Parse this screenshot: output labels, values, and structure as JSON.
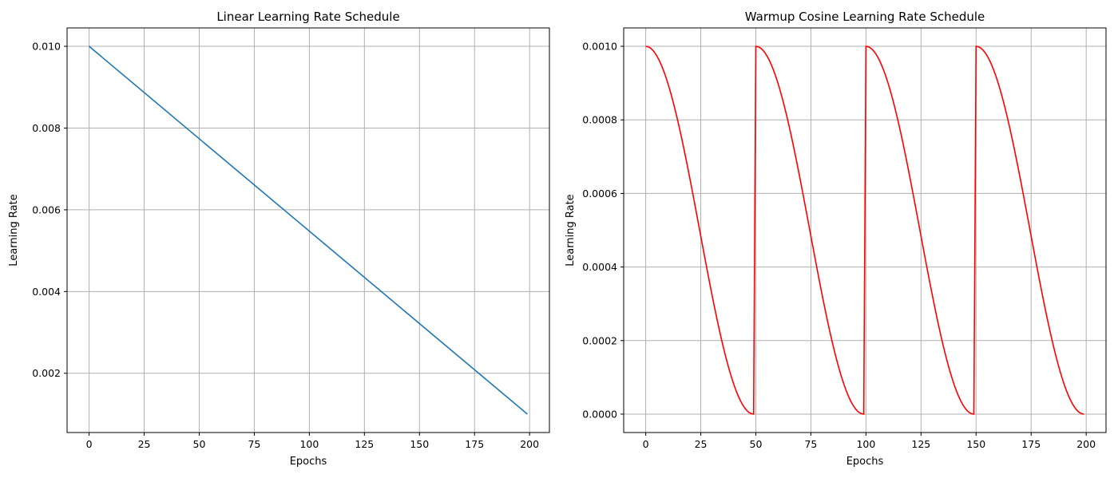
{
  "chart_data": [
    {
      "type": "line",
      "title": "Linear Learning Rate Schedule",
      "xlabel": "Epochs",
      "ylabel": "Learning Rate",
      "xlim": [
        -10,
        209
      ],
      "ylim": [
        0.00055,
        0.01045
      ],
      "xticks": [
        0,
        25,
        50,
        75,
        100,
        125,
        150,
        175,
        200
      ],
      "yticks": [
        0.002,
        0.004,
        0.006,
        0.008,
        0.01
      ],
      "xtick_labels": [
        "0",
        "25",
        "50",
        "75",
        "100",
        "125",
        "150",
        "175",
        "200"
      ],
      "ytick_labels": [
        "0.002",
        "0.004",
        "0.006",
        "0.008",
        "0.010"
      ],
      "grid": true,
      "series": [
        {
          "color": "#1f77b4",
          "x": [
            0,
            199
          ],
          "y": [
            0.01,
            0.001
          ]
        }
      ]
    },
    {
      "type": "line",
      "title": "Warmup Cosine Learning Rate Schedule",
      "xlabel": "Epochs",
      "ylabel": "Learning Rate",
      "xlim": [
        -10,
        209
      ],
      "ylim": [
        -5e-05,
        0.00105
      ],
      "xticks": [
        0,
        25,
        50,
        75,
        100,
        125,
        150,
        175,
        200
      ],
      "yticks": [
        0.0,
        0.0002,
        0.0004,
        0.0006,
        0.0008,
        0.001
      ],
      "xtick_labels": [
        "0",
        "25",
        "50",
        "75",
        "100",
        "125",
        "150",
        "175",
        "200"
      ],
      "ytick_labels": [
        "0.0000",
        "0.0002",
        "0.0004",
        "0.0006",
        "0.0008",
        "0.0010"
      ],
      "grid": true,
      "series": [
        {
          "color": "#ff0000",
          "x": [
            0,
            5,
            10,
            15,
            20,
            25,
            30,
            35,
            40,
            45,
            49,
            50,
            55,
            60,
            65,
            70,
            75,
            80,
            85,
            90,
            95,
            99,
            100,
            105,
            110,
            115,
            120,
            125,
            130,
            135,
            140,
            145,
            149,
            150,
            155,
            160,
            165,
            170,
            175,
            180,
            185,
            190,
            195,
            199
          ],
          "y": [
            0.001,
            0.000976,
            0.000905,
            0.000794,
            0.000655,
            0.0005,
            0.000345,
            0.000206,
            9.5e-05,
            2.4e-05,
            0.0,
            0.001,
            0.000976,
            0.000905,
            0.000794,
            0.000655,
            0.0005,
            0.000345,
            0.000206,
            9.5e-05,
            2.4e-05,
            0.0,
            0.001,
            0.000976,
            0.000905,
            0.000794,
            0.000655,
            0.0005,
            0.000345,
            0.000206,
            9.5e-05,
            2.4e-05,
            0.0,
            0.001,
            0.000976,
            0.000905,
            0.000794,
            0.000655,
            0.0005,
            0.000345,
            0.000206,
            9.5e-05,
            2.4e-05,
            0.0
          ]
        }
      ]
    }
  ]
}
